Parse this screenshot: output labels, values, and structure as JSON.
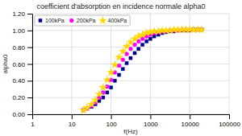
{
  "chart_data": {
    "type": "scatter",
    "title": "coefficient d'absorption en incidence normale alpha0",
    "x_label": "f(Hz)",
    "y_label": "alpha0",
    "log": "x",
    "xlim": [
      1,
      100000
    ],
    "xticks": [
      1,
      10,
      100,
      1000,
      10000,
      100000
    ],
    "ylim": [
      0.0,
      1.2
    ],
    "yticks": [
      {
        "value": 0.0,
        "label": "0.00"
      },
      {
        "value": 0.2,
        "label": "0.20"
      },
      {
        "value": 0.4,
        "label": "0.40"
      },
      {
        "value": 0.6,
        "label": "0.60"
      },
      {
        "value": 0.8,
        "label": "0.80"
      },
      {
        "value": 1.0,
        "label": "1.00"
      },
      {
        "value": 1.2,
        "label": "1.20"
      }
    ],
    "grid": true,
    "legend": "top-left",
    "x": [
      20,
      25,
      32,
      40,
      50,
      63,
      80,
      100,
      125,
      160,
      200,
      250,
      315,
      400,
      500,
      630,
      800,
      1000,
      1250,
      1600,
      2000,
      2500,
      3150,
      4000,
      5000,
      6300,
      8000,
      10000,
      12500,
      16000,
      20000
    ],
    "series": [
      {
        "name": "100kPa",
        "color": "#00008B",
        "marker": "square",
        "values": [
          0.05,
          0.07,
          0.09,
          0.12,
          0.16,
          0.2,
          0.26,
          0.32,
          0.4,
          0.47,
          0.54,
          0.61,
          0.67,
          0.73,
          0.78,
          0.83,
          0.87,
          0.9,
          0.93,
          0.95,
          0.97,
          0.98,
          0.99,
          0.99,
          1.0,
          1.0,
          1.0,
          1.0,
          1.01,
          1.01,
          1.01
        ]
      },
      {
        "name": "200kPa",
        "color": "#FF00FF",
        "marker": "circle",
        "values": [
          0.05,
          0.07,
          0.1,
          0.14,
          0.2,
          0.26,
          0.33,
          0.41,
          0.5,
          0.58,
          0.65,
          0.72,
          0.78,
          0.83,
          0.87,
          0.9,
          0.93,
          0.95,
          0.97,
          0.98,
          0.99,
          0.99,
          1.0,
          1.0,
          1.0,
          1.01,
          1.01,
          1.01,
          1.01,
          1.01,
          1.01
        ]
      },
      {
        "name": "400kPa",
        "color": "#FFD700",
        "marker": "star",
        "values": [
          0.05,
          0.08,
          0.12,
          0.17,
          0.24,
          0.32,
          0.41,
          0.5,
          0.59,
          0.68,
          0.75,
          0.81,
          0.86,
          0.9,
          0.93,
          0.95,
          0.97,
          0.98,
          0.99,
          0.99,
          1.0,
          1.0,
          1.0,
          1.01,
          1.01,
          1.01,
          1.01,
          1.01,
          1.01,
          1.01,
          1.01
        ]
      }
    ]
  }
}
